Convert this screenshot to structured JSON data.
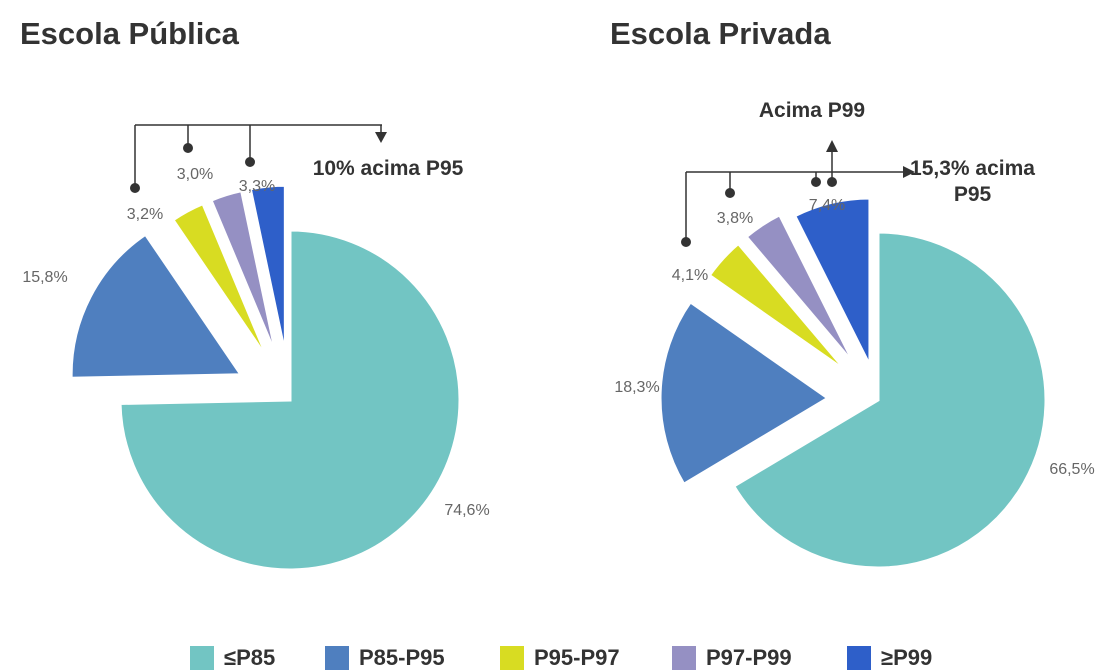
{
  "legend": {
    "categories": [
      "≤P85",
      "P85-P95",
      "P95-P97",
      "P97-P99",
      "≥P99"
    ],
    "colors": [
      "#72c5c3",
      "#4f7fbf",
      "#d8dc22",
      "#9590c3",
      "#2e5fc9"
    ]
  },
  "chart_data": [
    {
      "type": "pie",
      "title": "Escola Pública",
      "values": [
        74.6,
        15.8,
        3.2,
        3.0,
        3.3
      ],
      "value_labels": [
        "74,6%",
        "15,8%",
        "3,2%",
        "3,0%",
        "3,3%"
      ],
      "annotations": [
        "10% acima P95"
      ]
    },
    {
      "type": "pie",
      "title": "Escola Privada",
      "values": [
        66.5,
        18.3,
        4.1,
        3.8,
        7.4
      ],
      "value_labels": [
        "66,5%",
        "18,3%",
        "4,1%",
        "3,8%",
        "7,4%"
      ],
      "annotations": [
        "Acima P99",
        "15,3% acima P95"
      ]
    }
  ]
}
